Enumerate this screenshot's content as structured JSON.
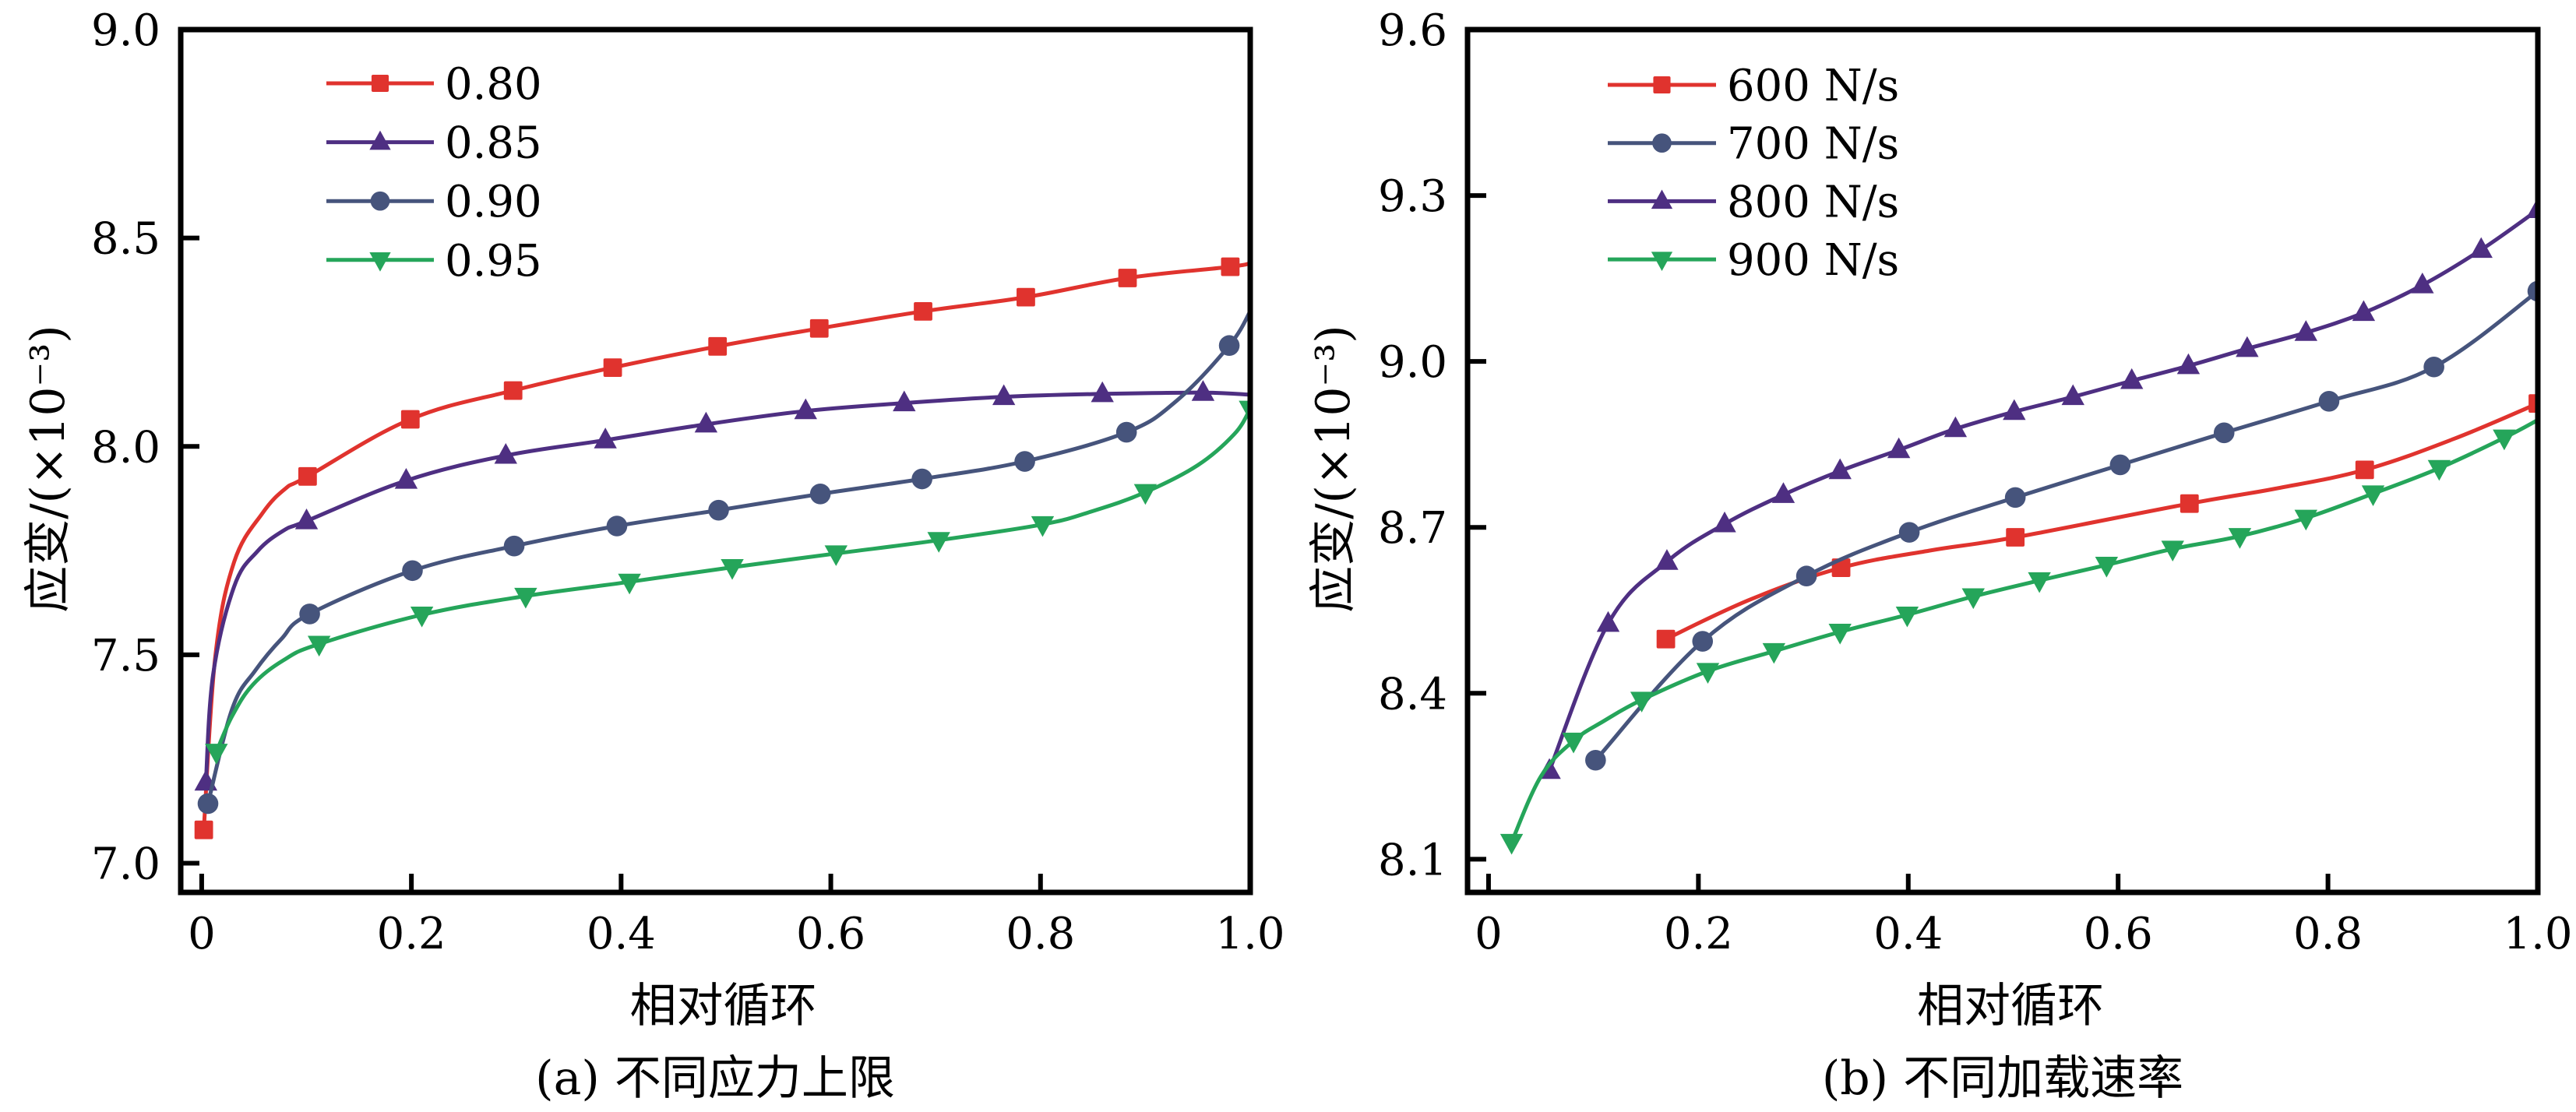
{
  "chart_data": [
    {
      "panel": "a",
      "type": "line",
      "caption": "(a) 不同应力上限",
      "xlabel": "相对循环",
      "ylabel": "应变/(×10⁻³)",
      "xlim": [
        -0.02,
        1.0
      ],
      "ylim": [
        6.93,
        9.0
      ],
      "xticks": [
        0,
        0.2,
        0.4,
        0.6,
        0.8,
        1.0
      ],
      "xtick_labels": [
        "0",
        "0.2",
        "0.4",
        "0.6",
        "0.8",
        "1.0"
      ],
      "yticks": [
        7.0,
        7.5,
        8.0,
        8.5,
        9.0
      ],
      "ytick_labels": [
        "7.0",
        "7.5",
        "8.0",
        "8.5",
        "9.0"
      ],
      "grid": false,
      "legend_position": "top-left",
      "series": [
        {
          "name": "0.80",
          "color": "#E0332E",
          "marker": "square",
          "markers": [
            [
              0.002,
              7.08
            ],
            [
              0.101,
              7.928
            ],
            [
              0.199,
              8.065
            ],
            [
              0.297,
              8.134
            ],
            [
              0.392,
              8.189
            ],
            [
              0.492,
              8.24
            ],
            [
              0.589,
              8.283
            ],
            [
              0.688,
              8.324
            ],
            [
              0.786,
              8.358
            ],
            [
              0.883,
              8.404
            ],
            [
              0.981,
              8.431
            ]
          ],
          "line": [
            [
              0.002,
              7.08
            ],
            [
              0.013,
              7.496
            ],
            [
              0.031,
              7.723
            ],
            [
              0.058,
              7.84
            ],
            [
              0.08,
              7.899
            ],
            [
              0.101,
              7.928
            ],
            [
              0.199,
              8.065
            ],
            [
              0.297,
              8.134
            ],
            [
              0.392,
              8.189
            ],
            [
              0.492,
              8.24
            ],
            [
              0.589,
              8.283
            ],
            [
              0.688,
              8.324
            ],
            [
              0.786,
              8.358
            ],
            [
              0.883,
              8.404
            ],
            [
              0.981,
              8.431
            ],
            [
              1.0,
              8.44
            ]
          ]
        },
        {
          "name": "0.85",
          "color": "#4E2F82",
          "marker": "triangle-up",
          "markers": [
            [
              0.004,
              7.194
            ],
            [
              0.1,
              7.821
            ],
            [
              0.195,
              7.918
            ],
            [
              0.29,
              7.978
            ],
            [
              0.385,
              8.015
            ],
            [
              0.481,
              8.053
            ],
            [
              0.576,
              8.085
            ],
            [
              0.67,
              8.104
            ],
            [
              0.765,
              8.119
            ],
            [
              0.859,
              8.126
            ],
            [
              0.955,
              8.129
            ]
          ],
          "line": [
            [
              0.004,
              7.194
            ],
            [
              0.011,
              7.454
            ],
            [
              0.031,
              7.664
            ],
            [
              0.053,
              7.748
            ],
            [
              0.078,
              7.798
            ],
            [
              0.1,
              7.821
            ],
            [
              0.195,
              7.918
            ],
            [
              0.29,
              7.978
            ],
            [
              0.385,
              8.015
            ],
            [
              0.481,
              8.053
            ],
            [
              0.576,
              8.085
            ],
            [
              0.67,
              8.104
            ],
            [
              0.765,
              8.119
            ],
            [
              0.859,
              8.126
            ],
            [
              0.955,
              8.129
            ],
            [
              1.0,
              8.124
            ]
          ]
        },
        {
          "name": "0.90",
          "color": "#46547C",
          "marker": "circle",
          "markers": [
            [
              0.006,
              7.143
            ],
            [
              0.103,
              7.598
            ],
            [
              0.201,
              7.702
            ],
            [
              0.298,
              7.761
            ],
            [
              0.396,
              7.809
            ],
            [
              0.493,
              7.847
            ],
            [
              0.59,
              7.886
            ],
            [
              0.687,
              7.922
            ],
            [
              0.785,
              7.964
            ],
            [
              0.882,
              8.034
            ],
            [
              0.98,
              8.242
            ]
          ],
          "line": [
            [
              0.006,
              7.143
            ],
            [
              0.029,
              7.37
            ],
            [
              0.051,
              7.462
            ],
            [
              0.076,
              7.538
            ],
            [
              0.103,
              7.598
            ],
            [
              0.201,
              7.702
            ],
            [
              0.298,
              7.761
            ],
            [
              0.396,
              7.809
            ],
            [
              0.493,
              7.847
            ],
            [
              0.59,
              7.886
            ],
            [
              0.687,
              7.922
            ],
            [
              0.785,
              7.964
            ],
            [
              0.882,
              8.034
            ],
            [
              0.93,
              8.11
            ],
            [
              0.98,
              8.242
            ],
            [
              1.0,
              8.324
            ]
          ]
        },
        {
          "name": "0.95",
          "color": "#25A55A",
          "marker": "triangle-down",
          "markers": [
            [
              0.014,
              7.267
            ],
            [
              0.112,
              7.526
            ],
            [
              0.21,
              7.596
            ],
            [
              0.309,
              7.641
            ],
            [
              0.408,
              7.675
            ],
            [
              0.506,
              7.71
            ],
            [
              0.605,
              7.743
            ],
            [
              0.703,
              7.775
            ],
            [
              0.802,
              7.813
            ],
            [
              0.9,
              7.89
            ],
            [
              1.0,
              8.09
            ]
          ],
          "line": [
            [
              0.014,
              7.267
            ],
            [
              0.029,
              7.353
            ],
            [
              0.049,
              7.429
            ],
            [
              0.078,
              7.487
            ],
            [
              0.112,
              7.526
            ],
            [
              0.21,
              7.596
            ],
            [
              0.309,
              7.641
            ],
            [
              0.408,
              7.675
            ],
            [
              0.506,
              7.71
            ],
            [
              0.605,
              7.743
            ],
            [
              0.703,
              7.775
            ],
            [
              0.802,
              7.813
            ],
            [
              0.85,
              7.845
            ],
            [
              0.9,
              7.89
            ],
            [
              0.95,
              7.955
            ],
            [
              0.985,
              8.03
            ],
            [
              1.0,
              8.09
            ]
          ]
        }
      ]
    },
    {
      "panel": "b",
      "type": "line",
      "caption": "(b) 不同加载速率",
      "xlabel": "相对循环",
      "ylabel": "应变/(×10⁻³)",
      "xlim": [
        -0.02,
        1.0
      ],
      "ylim": [
        8.04,
        9.6
      ],
      "xticks": [
        0,
        0.2,
        0.4,
        0.6,
        0.8,
        1.0
      ],
      "xtick_labels": [
        "0",
        "0.2",
        "0.4",
        "0.6",
        "0.8",
        "1.0"
      ],
      "yticks": [
        8.1,
        8.4,
        8.7,
        9.0,
        9.3,
        9.6
      ],
      "ytick_labels": [
        "8.1",
        "8.4",
        "8.7",
        "9.0",
        "9.3",
        "9.6"
      ],
      "grid": false,
      "legend_position": "top-left",
      "series": [
        {
          "name": "600 N/s",
          "color": "#E0332E",
          "marker": "square",
          "markers": [
            [
              0.169,
              8.498
            ],
            [
              0.336,
              8.627
            ],
            [
              0.502,
              8.682
            ],
            [
              0.668,
              8.743
            ],
            [
              0.835,
              8.804
            ],
            [
              1.0,
              8.924
            ]
          ],
          "line": [
            [
              0.169,
              8.498
            ],
            [
              0.25,
              8.57
            ],
            [
              0.336,
              8.627
            ],
            [
              0.42,
              8.658
            ],
            [
              0.502,
              8.682
            ],
            [
              0.668,
              8.743
            ],
            [
              0.75,
              8.77
            ],
            [
              0.835,
              8.804
            ],
            [
              0.92,
              8.86
            ],
            [
              1.0,
              8.924
            ]
          ]
        },
        {
          "name": "700 N/s",
          "color": "#46547C",
          "marker": "circle",
          "markers": [
            [
              0.102,
              8.279
            ],
            [
              0.204,
              8.494
            ],
            [
              0.303,
              8.612
            ],
            [
              0.401,
              8.691
            ],
            [
              0.502,
              8.754
            ],
            [
              0.602,
              8.813
            ],
            [
              0.701,
              8.871
            ],
            [
              0.801,
              8.928
            ],
            [
              0.901,
              8.99
            ],
            [
              1.0,
              9.127
            ]
          ],
          "line": [
            [
              0.102,
              8.279
            ],
            [
              0.204,
              8.494
            ],
            [
              0.303,
              8.612
            ],
            [
              0.401,
              8.691
            ],
            [
              0.502,
              8.754
            ],
            [
              0.602,
              8.813
            ],
            [
              0.701,
              8.871
            ],
            [
              0.801,
              8.928
            ],
            [
              0.901,
              8.99
            ],
            [
              1.0,
              9.127
            ]
          ]
        },
        {
          "name": "800 N/s",
          "color": "#4E2F82",
          "marker": "triangle-up",
          "markers": [
            [
              0.058,
              8.26
            ],
            [
              0.114,
              8.526
            ],
            [
              0.17,
              8.638
            ],
            [
              0.225,
              8.706
            ],
            [
              0.281,
              8.759
            ],
            [
              0.335,
              8.802
            ],
            [
              0.391,
              8.84
            ],
            [
              0.445,
              8.878
            ],
            [
              0.501,
              8.909
            ],
            [
              0.557,
              8.936
            ],
            [
              0.613,
              8.965
            ],
            [
              0.667,
              8.992
            ],
            [
              0.723,
              9.023
            ],
            [
              0.779,
              9.052
            ],
            [
              0.834,
              9.088
            ],
            [
              0.89,
              9.138
            ],
            [
              0.946,
              9.202
            ],
            [
              1.0,
              9.274
            ]
          ],
          "line": [
            [
              0.058,
              8.26
            ],
            [
              0.114,
              8.526
            ],
            [
              0.17,
              8.638
            ],
            [
              0.225,
              8.706
            ],
            [
              0.281,
              8.759
            ],
            [
              0.335,
              8.802
            ],
            [
              0.391,
              8.84
            ],
            [
              0.445,
              8.878
            ],
            [
              0.501,
              8.909
            ],
            [
              0.557,
              8.936
            ],
            [
              0.613,
              8.965
            ],
            [
              0.667,
              8.992
            ],
            [
              0.723,
              9.023
            ],
            [
              0.779,
              9.052
            ],
            [
              0.834,
              9.088
            ],
            [
              0.89,
              9.138
            ],
            [
              0.946,
              9.202
            ],
            [
              1.0,
              9.274
            ]
          ]
        },
        {
          "name": "900 N/s",
          "color": "#25A55A",
          "marker": "triangle-down",
          "markers": [
            [
              0.022,
              8.131
            ],
            [
              0.081,
              8.314
            ],
            [
              0.146,
              8.388
            ],
            [
              0.209,
              8.44
            ],
            [
              0.272,
              8.476
            ],
            [
              0.335,
              8.511
            ],
            [
              0.399,
              8.542
            ],
            [
              0.462,
              8.575
            ],
            [
              0.525,
              8.604
            ],
            [
              0.589,
              8.632
            ],
            [
              0.652,
              8.661
            ],
            [
              0.716,
              8.684
            ],
            [
              0.779,
              8.717
            ],
            [
              0.843,
              8.761
            ],
            [
              0.906,
              8.807
            ],
            [
              0.968,
              8.862
            ]
          ],
          "line": [
            [
              0.022,
              8.131
            ],
            [
              0.05,
              8.25
            ],
            [
              0.081,
              8.314
            ],
            [
              0.11,
              8.35
            ],
            [
              0.146,
              8.388
            ],
            [
              0.209,
              8.44
            ],
            [
              0.272,
              8.476
            ],
            [
              0.335,
              8.511
            ],
            [
              0.399,
              8.542
            ],
            [
              0.462,
              8.575
            ],
            [
              0.525,
              8.604
            ],
            [
              0.589,
              8.632
            ],
            [
              0.652,
              8.661
            ],
            [
              0.716,
              8.684
            ],
            [
              0.779,
              8.717
            ],
            [
              0.843,
              8.761
            ],
            [
              0.906,
              8.807
            ],
            [
              0.968,
              8.862
            ],
            [
              1.0,
              8.894
            ]
          ]
        }
      ]
    }
  ]
}
